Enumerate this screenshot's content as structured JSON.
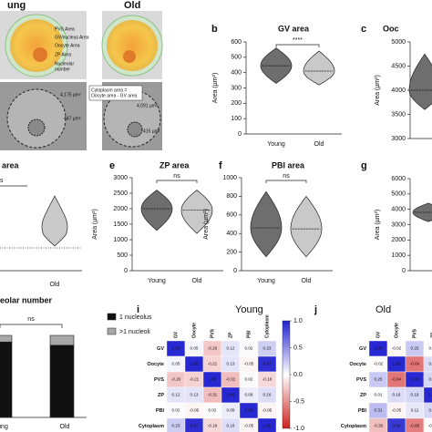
{
  "figure_a": {
    "young": "ung",
    "old": "Old",
    "annotations": [
      "PVS Area",
      "GV/nucleus Area",
      "Oocyte Area",
      "ZP Area",
      "Nucleolar",
      "number"
    ],
    "formula": [
      "Cytoplasm area =",
      "Oocyte area - GV area"
    ],
    "measurements": [
      "4,175 µm²",
      "447 µm²",
      "4,091 µm²",
      "415 µm²"
    ]
  },
  "panel_d": {
    "title": "area",
    "category": "Old",
    "significance": "s"
  },
  "chart_data": [
    {
      "type": "violin",
      "panel": "b",
      "title": "GV area",
      "ylabel": "Area (µm²)",
      "categories": [
        "Young",
        "Old"
      ],
      "colors": [
        "#6e6e6e",
        "#c9c9c9"
      ],
      "mins": [
        330,
        320
      ],
      "medians": [
        445,
        410
      ],
      "maxs": [
        560,
        540
      ],
      "ylim": [
        0,
        600
      ],
      "yticks": [
        0,
        100,
        200,
        300,
        400,
        500,
        600
      ],
      "significance": "****"
    },
    {
      "type": "violin",
      "panel": "c",
      "title": "Ooc",
      "ylabel": "Area (µm²)",
      "categories": [
        null
      ],
      "colors": [
        "#6e6e6e"
      ],
      "mins": [
        3600
      ],
      "medians": [
        4000
      ],
      "maxs": [
        4750
      ],
      "ylim": [
        3000,
        5000
      ],
      "yticks": [
        3000,
        3500,
        4000,
        4500,
        5000
      ]
    },
    {
      "type": "violin",
      "panel": "e",
      "title": "ZP area",
      "ylabel": "Area (µm²)",
      "categories": [
        "Young",
        "Old"
      ],
      "colors": [
        "#6e6e6e",
        "#c9c9c9"
      ],
      "mins": [
        1300,
        1200
      ],
      "medians": [
        2000,
        1950
      ],
      "maxs": [
        2600,
        2600
      ],
      "ylim": [
        0,
        3000
      ],
      "yticks": [
        0,
        500,
        1000,
        1500,
        2000,
        2500,
        3000
      ],
      "significance": "ns"
    },
    {
      "type": "violin",
      "panel": "f",
      "title": "PBI area",
      "ylabel": "Area (µm²)",
      "categories": [
        "Young",
        "Old"
      ],
      "colors": [
        "#6e6e6e",
        "#c9c9c9"
      ],
      "mins": [
        150,
        150
      ],
      "medians": [
        460,
        450
      ],
      "maxs": [
        850,
        800
      ],
      "ylim": [
        0,
        1000
      ],
      "yticks": [
        0,
        200,
        400,
        600,
        800,
        1000
      ],
      "significance": "ns"
    },
    {
      "type": "violin",
      "panel": "g",
      "ylabel": "Area (µm²)",
      "categories": [
        null
      ],
      "colors": [
        "#6e6e6e"
      ],
      "mins": [
        3200
      ],
      "medians": [
        3800
      ],
      "maxs": [
        4400
      ],
      "ylim": [
        0,
        6000
      ],
      "yticks": [
        0,
        1000,
        2000,
        3000,
        4000,
        5000,
        6000
      ]
    },
    {
      "type": "stacked_bar",
      "title": "eolar number",
      "categories": [
        "ung",
        "Old"
      ],
      "ylim": [
        0,
        100
      ],
      "significance": "ns",
      "series": [
        {
          "name": "1 nucleolus",
          "color": "#111111",
          "values": [
            92,
            88
          ]
        },
        {
          "name": ">1 nucleoli",
          "color": "#a8a8a8",
          "values": [
            8,
            12
          ]
        }
      ]
    },
    {
      "type": "heatmap",
      "panel": "i",
      "title": "Young",
      "rows": [
        "GV",
        "Oocyte",
        "PVS",
        "ZP",
        "PBI",
        "Cytoplasm"
      ],
      "columns": [
        "GV",
        "Oocyte",
        "PVS",
        "ZP",
        "PBI",
        "Cytoplasm"
      ],
      "values": [
        [
          1,
          0.05,
          -0.26,
          0.12,
          0.02,
          0.23
        ],
        [
          0.05,
          1,
          -0.21,
          0.13,
          -0.05,
          0.97
        ],
        [
          -0.26,
          -0.21,
          1,
          -0.31,
          0.02,
          -0.18
        ],
        [
          0.12,
          0.13,
          -0.31,
          1,
          0.09,
          0.16
        ],
        [
          0.02,
          -0.05,
          0.02,
          0.09,
          1,
          -0.05
        ],
        [
          0.23,
          0.97,
          -0.18,
          0.16,
          -0.05,
          1
        ]
      ],
      "value_labels": [
        [
          "1.00",
          "0.05",
          "-0.26",
          "0.12",
          "0.02",
          "0.23"
        ],
        [
          "0.05",
          "1.00",
          "-0.21",
          "0.13",
          "-0.05",
          "0.97"
        ],
        [
          "-0.26",
          "-0.21",
          "1.00",
          "-0.31",
          "0.02",
          "-0.18"
        ],
        [
          "0.12",
          "0.13",
          "-0.31",
          "1.00",
          "0.09",
          "0.16"
        ],
        [
          "0.02",
          "-0.05",
          "0.02",
          "0.09",
          "1.00",
          "-0.05"
        ],
        [
          "0.23",
          "0.97",
          "-0.18",
          "0.16",
          "-0.05",
          "1.00"
        ]
      ],
      "clim": [
        -1,
        1
      ],
      "cticks": [
        {
          "value": 1,
          "label": "1.0"
        },
        {
          "value": 0.5,
          "label": "0.5"
        },
        {
          "value": 0,
          "label": "0.0"
        },
        {
          "value": -0.5,
          "label": "-0.5"
        },
        {
          "value": -1,
          "label": "-1.0"
        }
      ]
    },
    {
      "type": "heatmap",
      "panel": "j",
      "title": "Old",
      "rows": [
        "GV",
        "Oocyte",
        "PVS",
        "ZP",
        "PBI",
        "Cytoplasm"
      ],
      "columns": [
        "GV",
        "Oocyte",
        "PVS",
        "ZP"
      ],
      "values": [
        [
          1,
          -0.02,
          0.25,
          0.01
        ],
        [
          -0.02,
          1,
          -0.64,
          0.16
        ],
        [
          0.25,
          -0.64,
          1,
          0.19
        ],
        [
          0.01,
          0.16,
          0.19,
          1
        ],
        [
          0.31,
          -0.05,
          0.11,
          0.19
        ],
        [
          -0.3,
          0.92,
          -0.6,
          -0.02
        ]
      ],
      "value_labels": [
        [
          "1.00",
          "-0.02",
          "0.25",
          "0.01"
        ],
        [
          "-0.02",
          "1.00",
          "-0.64",
          "0.16"
        ],
        [
          "0.25",
          "-0.64",
          "1.00",
          "0.19"
        ],
        [
          "0.01",
          "0.16",
          "0.19",
          "1.00"
        ],
        [
          "0.31",
          "-0.05",
          "0.11",
          "0.19"
        ],
        [
          "-0.30",
          "0.92",
          "-0.60",
          "-0.02"
        ]
      ],
      "clim": [
        -1,
        1
      ]
    }
  ]
}
